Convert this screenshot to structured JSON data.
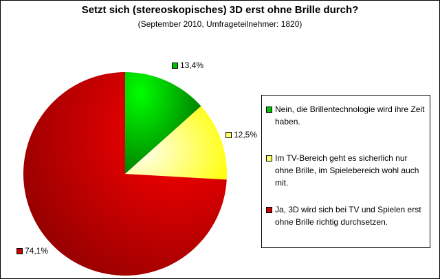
{
  "chart_data": {
    "type": "pie",
    "title": "Setzt sich (stereoskopisches) 3D erst ohne Brille durch?",
    "subtitle": "(September 2010, Umfrageteilnehmer: 1820)",
    "legend_position": "right",
    "slices": [
      {
        "label": "Nein, die Brillentechnologie wird ihre Zeit haben.",
        "value": 13.4,
        "value_label": "13,4%",
        "color": "#00c000"
      },
      {
        "label": "Im TV-Bereich geht es sicherlich nur ohne Brille, im Spielebereich wohl auch mit.",
        "value": 12.5,
        "value_label": "12,5%",
        "color": "#ffff66"
      },
      {
        "label": "Ja, 3D wird sich bei TV und Spielen erst ohne Brille richtig durchsetzen.",
        "value": 74.1,
        "value_label": "74,1%",
        "color": "#cc0000"
      }
    ]
  }
}
